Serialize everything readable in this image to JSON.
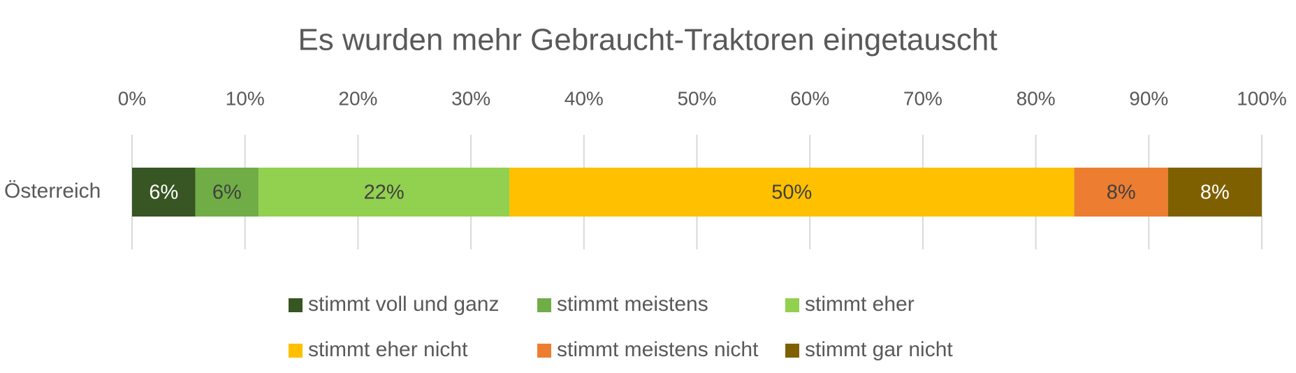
{
  "chart_data": {
    "type": "stacked_bar_horizontal",
    "title": "Es wurden mehr Gebraucht-Traktoren eingetauscht",
    "categories": [
      "Österreich"
    ],
    "series": [
      {
        "name": "stimmt voll und ganz",
        "color": "#375623",
        "values": [
          5.6
        ],
        "value_labels": [
          "6%"
        ]
      },
      {
        "name": "stimmt meistens",
        "color": "#70ad47",
        "values": [
          5.6
        ],
        "value_labels": [
          "6%"
        ]
      },
      {
        "name": "stimmt eher",
        "color": "#92d050",
        "values": [
          22.2
        ],
        "value_labels": [
          "22%"
        ]
      },
      {
        "name": "stimmt eher nicht",
        "color": "#ffc000",
        "values": [
          50.0
        ],
        "value_labels": [
          "50%"
        ]
      },
      {
        "name": "stimmt meistens nicht",
        "color": "#ed7d31",
        "values": [
          8.3
        ],
        "value_labels": [
          "8%"
        ]
      },
      {
        "name": "stimmt gar nicht",
        "color": "#7f6000",
        "values": [
          8.3
        ],
        "value_labels": [
          "8%"
        ]
      }
    ],
    "xlim": [
      0,
      100
    ],
    "xticks": [
      {
        "value": 0,
        "label": "0%"
      },
      {
        "value": 10,
        "label": "10%"
      },
      {
        "value": 20,
        "label": "20%"
      },
      {
        "value": 30,
        "label": "30%"
      },
      {
        "value": 40,
        "label": "40%"
      },
      {
        "value": 50,
        "label": "50%"
      },
      {
        "value": 60,
        "label": "60%"
      },
      {
        "value": 70,
        "label": "70%"
      },
      {
        "value": 80,
        "label": "80%"
      },
      {
        "value": 90,
        "label": "90%"
      },
      {
        "value": 100,
        "label": "100%"
      }
    ],
    "grid": true,
    "legend": "bottom"
  }
}
